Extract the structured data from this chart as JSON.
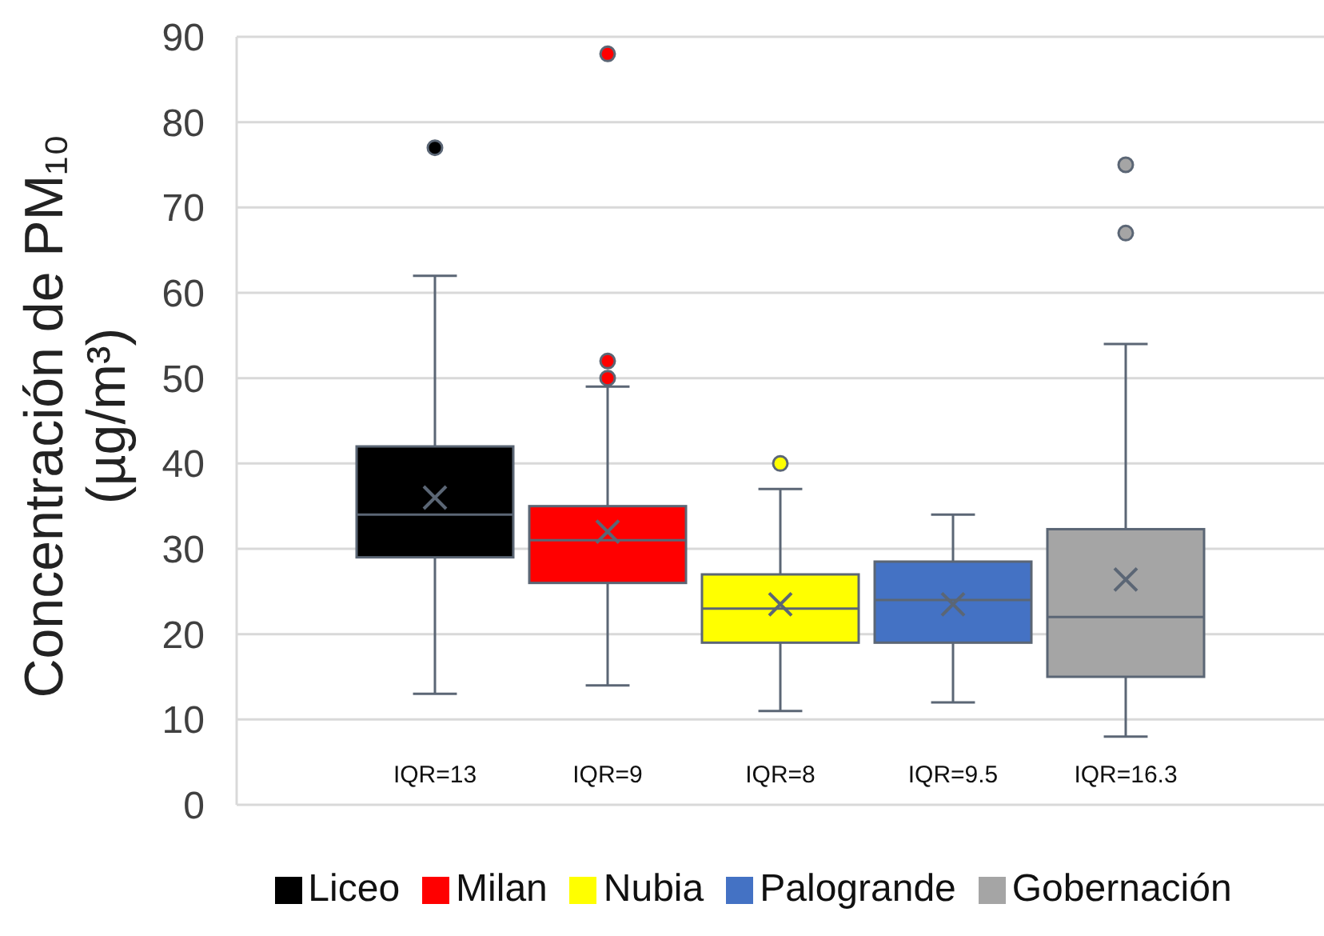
{
  "chart_data": {
    "type": "box",
    "ylabel": "Concentración de PM₁₀ (µg/m³)",
    "categories": [
      null
    ],
    "series": [
      {
        "name": "Liceo",
        "color": "#000000",
        "boxes": [
          {
            "low": 13,
            "q1": 29,
            "median": 34,
            "q3": 42,
            "high": 62,
            "mean": 36,
            "outliers": [
              77
            ]
          }
        ]
      },
      {
        "name": "Milan",
        "color": "#ff0000",
        "boxes": [
          {
            "low": 14,
            "q1": 26,
            "median": 31,
            "q3": 35,
            "high": 49,
            "mean": 32,
            "outliers": [
              50,
              52,
              88
            ]
          }
        ]
      },
      {
        "name": "Nubia",
        "color": "#ffff00",
        "boxes": [
          {
            "low": 11,
            "q1": 19,
            "median": 23,
            "q3": 27,
            "high": 37,
            "mean": 23.5,
            "outliers": [
              40
            ]
          }
        ]
      },
      {
        "name": "Palogrande",
        "color": "#4472c4",
        "boxes": [
          {
            "low": 12,
            "q1": 19,
            "median": 24,
            "q3": 28.5,
            "high": 34,
            "mean": 23.5
          }
        ]
      },
      {
        "name": "Gobernación",
        "color": "#a5a5a5",
        "boxes": [
          {
            "low": 8,
            "q1": 15,
            "median": 22,
            "q3": 32.3,
            "high": 54,
            "mean": 26.4,
            "outliers": [
              67,
              75
            ]
          }
        ]
      }
    ],
    "ylim": [
      0,
      90
    ],
    "yticks": [
      0,
      10,
      20,
      30,
      40,
      50,
      60,
      70,
      80,
      90
    ],
    "grid": "y",
    "legend": "bottom",
    "tick_labels": "y",
    "annotations": [
      "IQR=13",
      "IQR=9",
      "IQR=8",
      "IQR=9.5",
      "IQR=16.3"
    ]
  }
}
